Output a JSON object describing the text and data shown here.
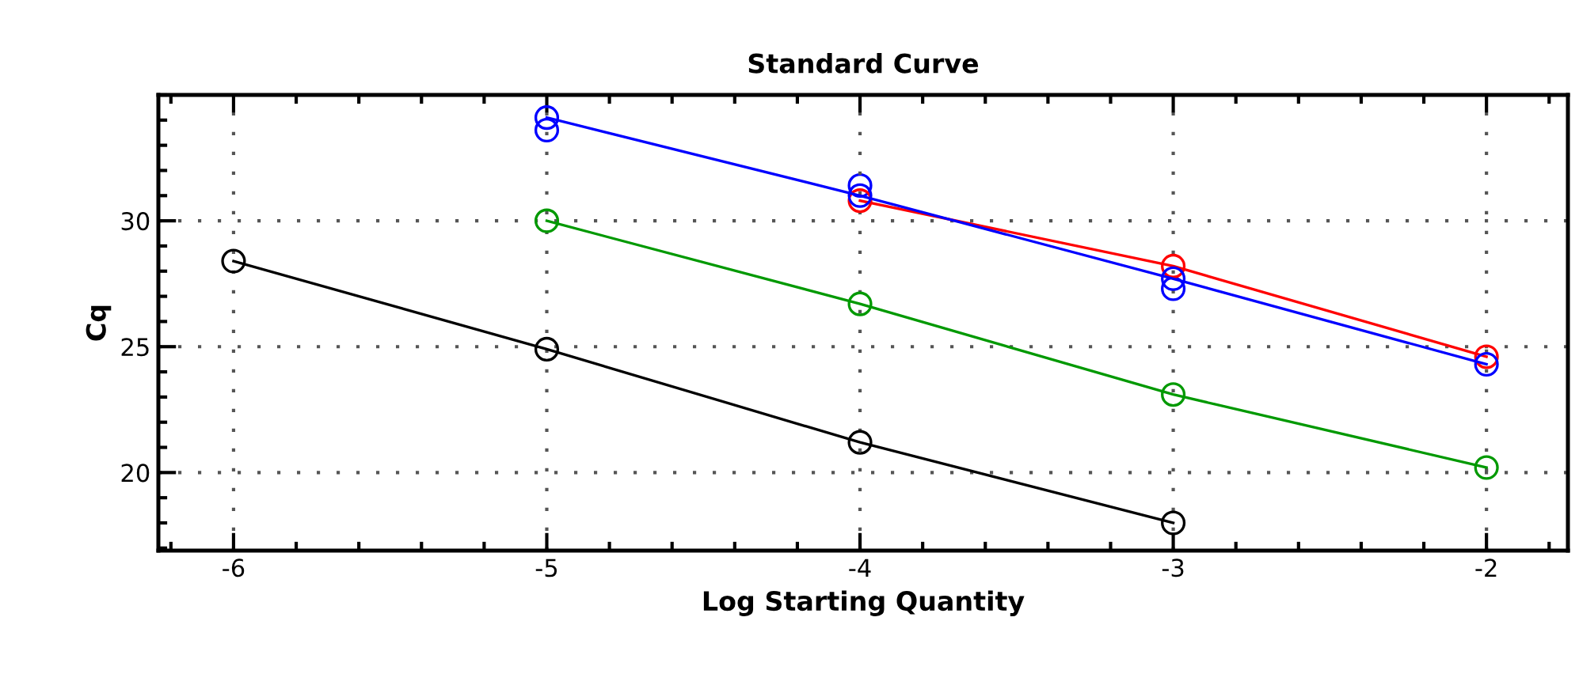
{
  "chart_data": {
    "type": "line",
    "title": "Standard Curve",
    "xlabel": "Log Starting Quantity",
    "ylabel": "Cq",
    "xlim": [
      -6.24,
      -1.74
    ],
    "ylim": [
      16.9,
      35.0
    ],
    "xticks": [
      -6,
      -5,
      -4,
      -3,
      -2
    ],
    "yticks": [
      20,
      25,
      30
    ],
    "grid": true,
    "marker": "circle",
    "line_style": "solid",
    "legend": false,
    "series": [
      {
        "color": "#000000",
        "x": [
          -6,
          -5,
          -4,
          -3
        ],
        "values": [
          28.4,
          24.9,
          21.2,
          18.0
        ]
      },
      {
        "color": "#009900",
        "x": [
          -5,
          -4,
          -3,
          -2
        ],
        "values": [
          30.0,
          26.7,
          23.1,
          20.2
        ]
      },
      {
        "color": "#ff0000",
        "x": [
          -4,
          -3,
          -2
        ],
        "values": [
          30.8,
          28.2,
          24.6
        ]
      },
      {
        "color": "#0000ff",
        "x": [
          -5,
          -4,
          -3,
          -2
        ],
        "values": [
          34.1,
          31.0,
          27.7,
          24.3
        ]
      },
      {
        "type": "scatter",
        "color": "#0000ff",
        "x": [
          -5,
          -4,
          -3
        ],
        "values": [
          33.6,
          31.4,
          27.3
        ]
      }
    ]
  }
}
